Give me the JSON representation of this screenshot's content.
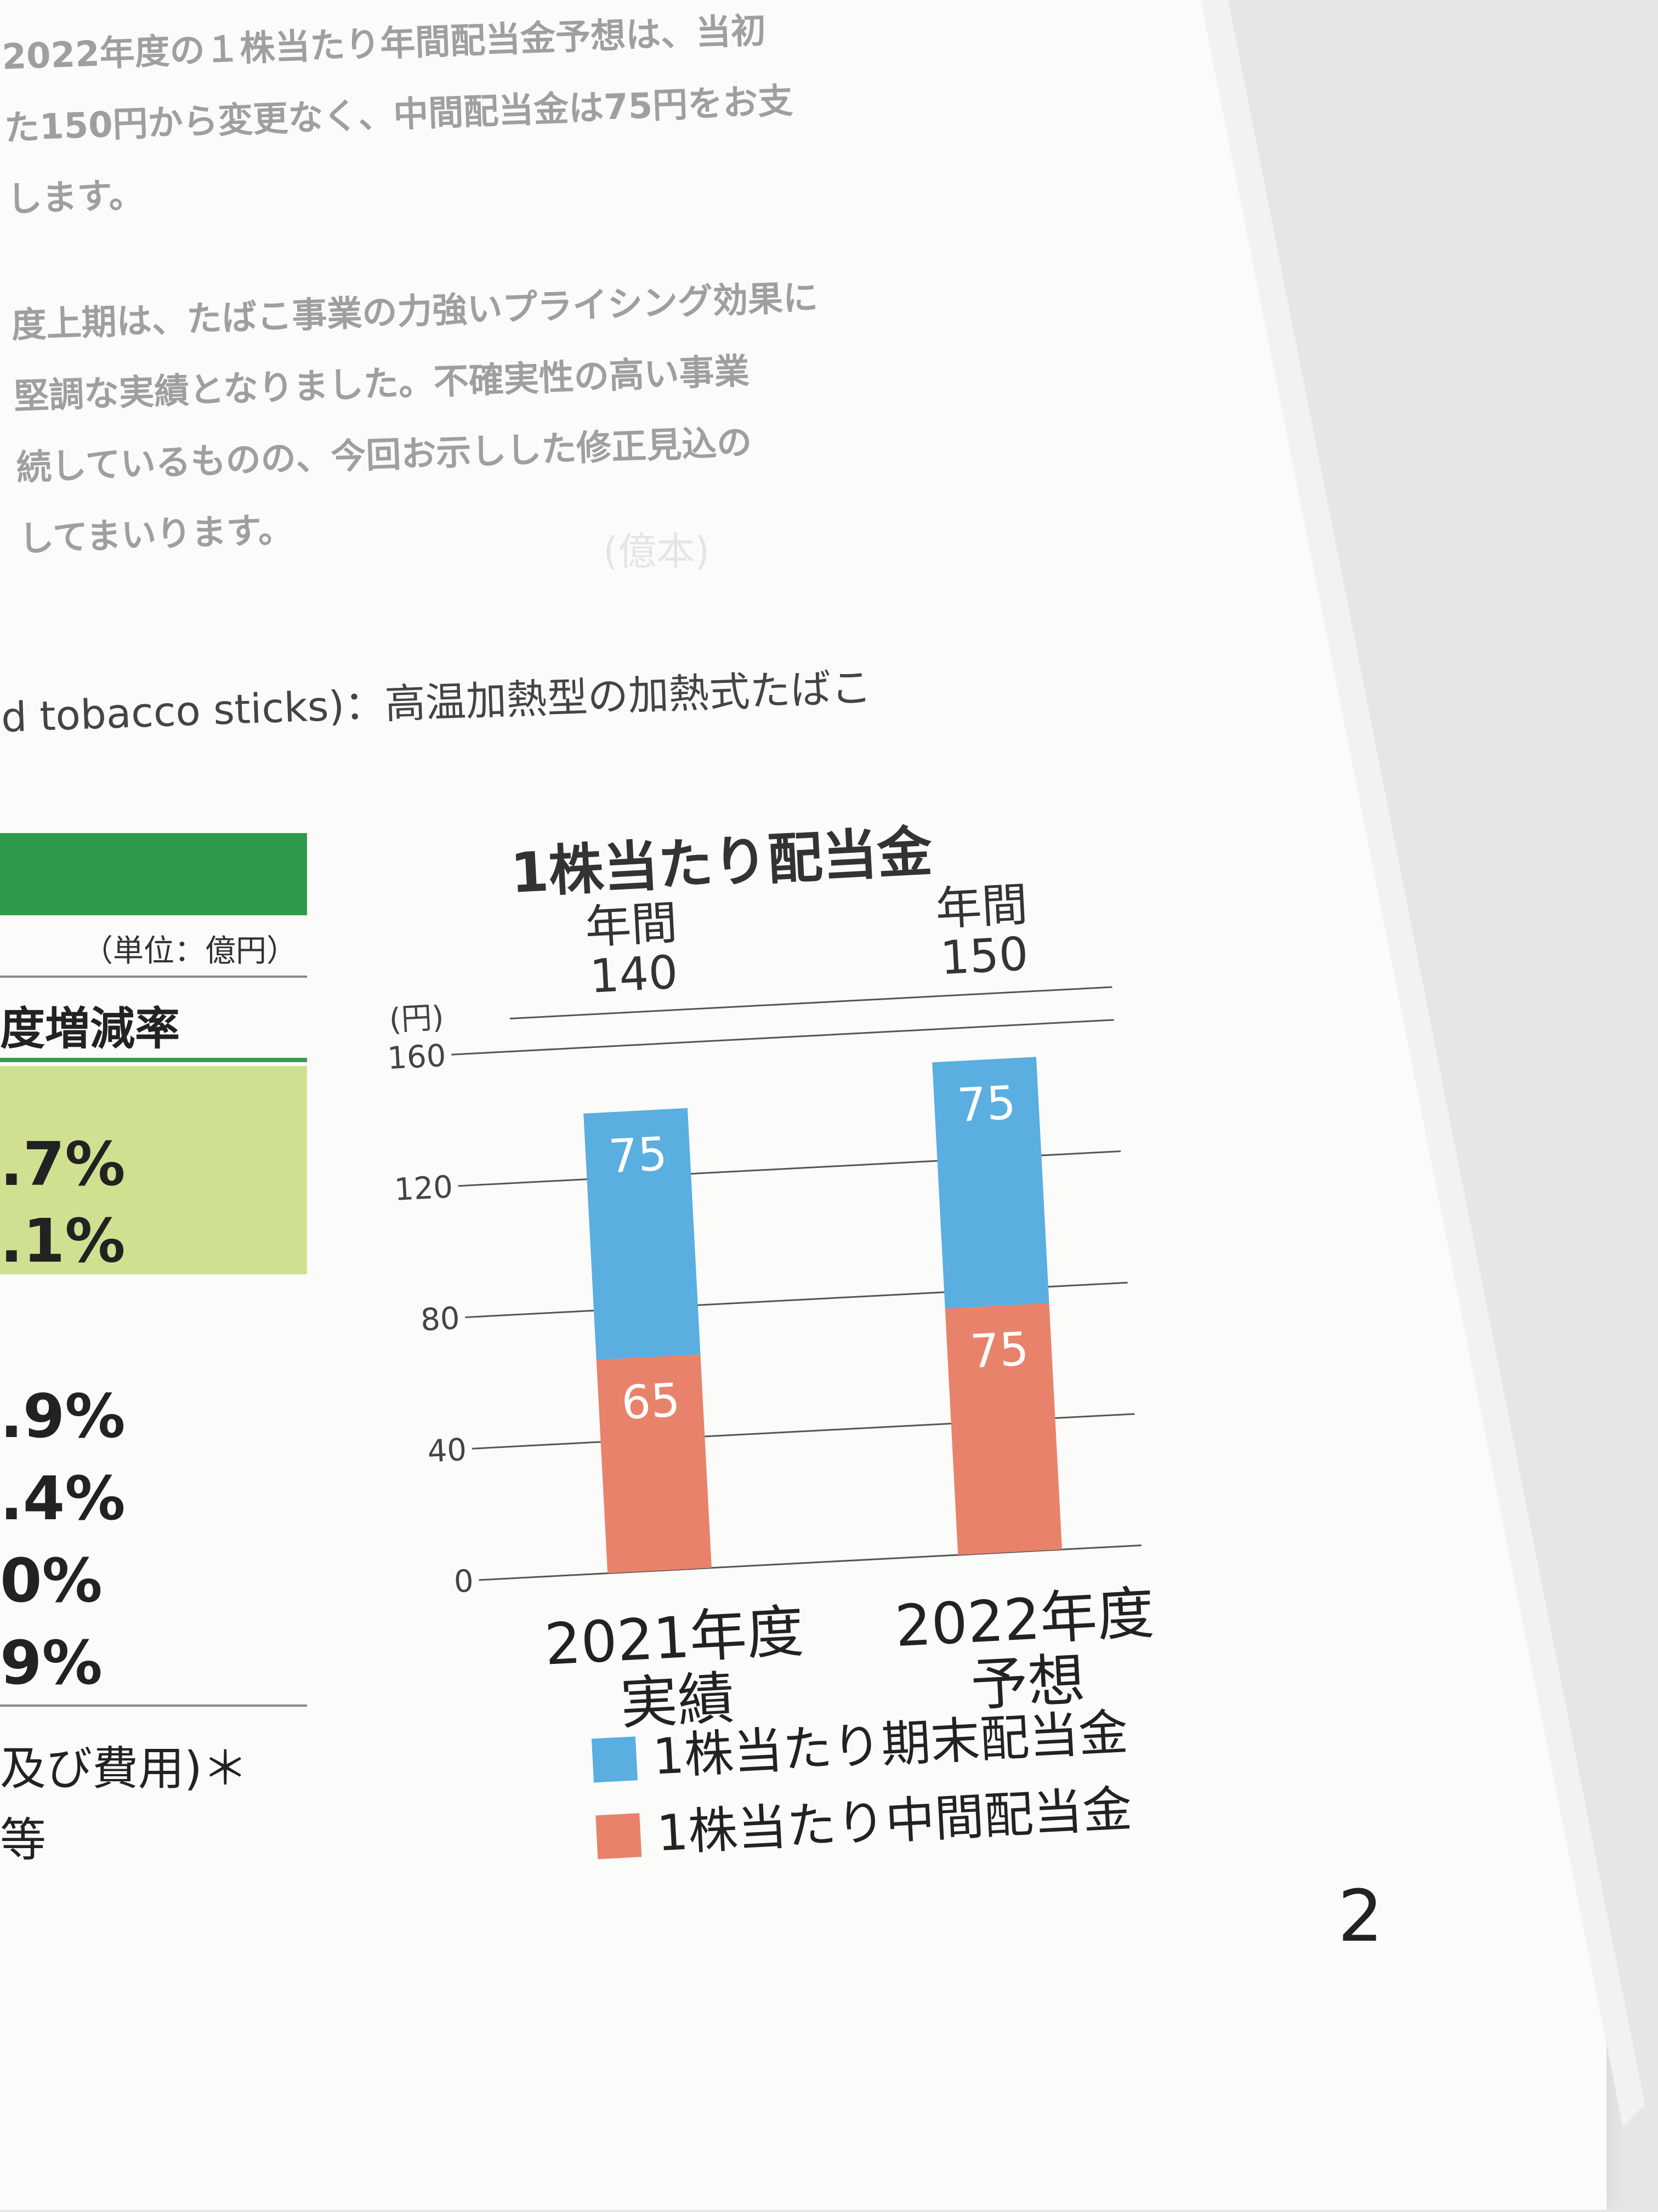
{
  "body_text": [
    "2022年度の１株当たり年間配当金予想は、当初",
    "た150円から変更なく、中間配当金は75円をお支",
    "します。",
    "度上期は、たばこ事業の力強いプライシング効果に",
    "堅調な実績となりました。不確実性の高い事業",
    "続しているものの、今回お示しした修正見込の",
    "してまいります。"
  ],
  "note": "d tobacco sticks)：高温加熱型の加熱式たばこ",
  "table": {
    "unit": "（単位：億円）",
    "header": "度増減率",
    "values": [
      ".7%",
      ".1%",
      ".9%",
      ".4%",
      "0%",
      "9%"
    ]
  },
  "footnote_lines": [
    "及び費用)＊",
    "等"
  ],
  "page_number": "2",
  "chart_data": {
    "type": "bar",
    "stacked": true,
    "title": "1株当たり配当金",
    "ylabel": "(円)",
    "ylim": [
      0,
      160
    ],
    "yticks": [
      0,
      40,
      80,
      120,
      160
    ],
    "categories": [
      "2021年度\n実績",
      "2022年度\n予想"
    ],
    "totals": [
      "年間\n140",
      "年間\n150"
    ],
    "series": [
      {
        "name": "1株当たり中間配当金",
        "values": [
          65,
          75
        ],
        "color": "#e9826a"
      },
      {
        "name": "1株当たり期末配当金",
        "values": [
          75,
          75
        ],
        "color": "#5aaee0"
      }
    ],
    "legend_order": [
      1,
      0
    ],
    "grid": true
  }
}
